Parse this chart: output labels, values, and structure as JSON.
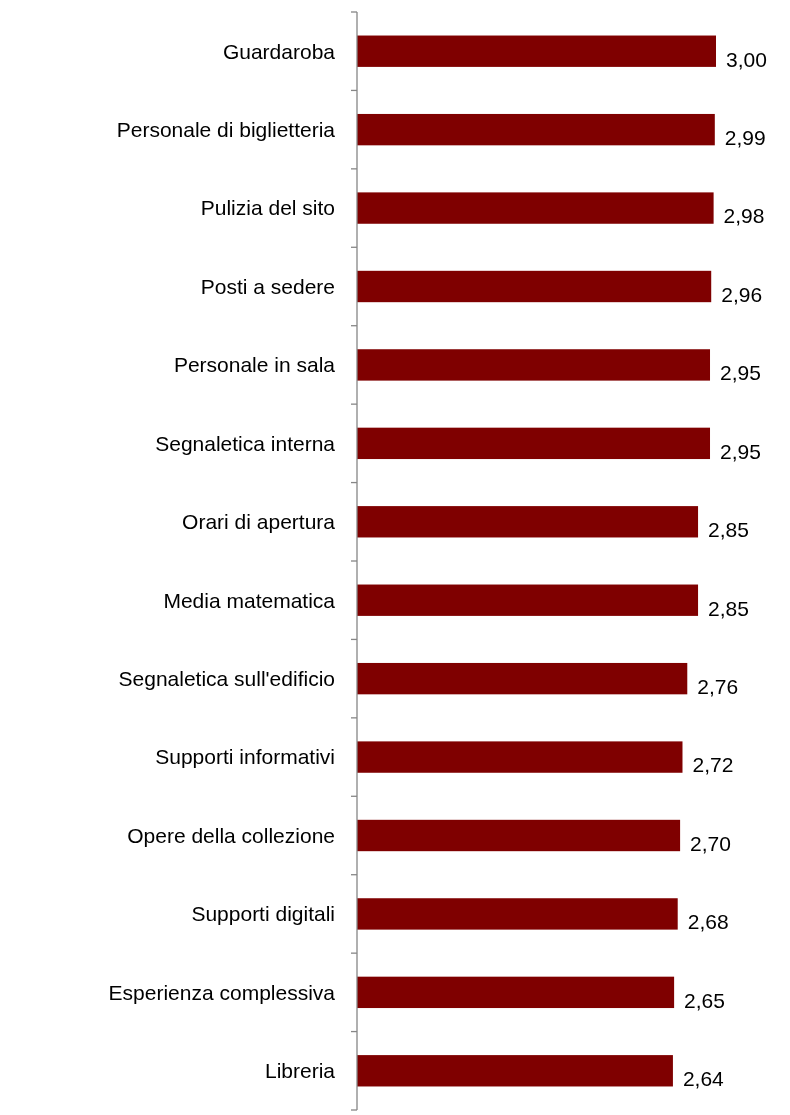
{
  "chart_data": {
    "type": "bar",
    "orientation": "horizontal",
    "categories": [
      "Guardaroba",
      "Personale di biglietteria",
      "Pulizia del sito",
      "Posti a sedere",
      "Personale in sala",
      "Segnaletica interna",
      "Orari di apertura",
      "Media matematica",
      "Segnaletica sull'edificio",
      "Supporti informativi",
      "Opere della collezione",
      "Supporti digitali",
      "Esperienza complessiva",
      "Libreria"
    ],
    "values": [
      3.0,
      2.99,
      2.98,
      2.96,
      2.95,
      2.95,
      2.85,
      2.85,
      2.76,
      2.72,
      2.7,
      2.68,
      2.65,
      2.64
    ],
    "value_labels": [
      "3,00",
      "2,99",
      "2,98",
      "2,96",
      "2,95",
      "2,95",
      "2,85",
      "2,85",
      "2,76",
      "2,72",
      "2,70",
      "2,68",
      "2,65",
      "2,64"
    ],
    "color": "#7f0000"
  }
}
